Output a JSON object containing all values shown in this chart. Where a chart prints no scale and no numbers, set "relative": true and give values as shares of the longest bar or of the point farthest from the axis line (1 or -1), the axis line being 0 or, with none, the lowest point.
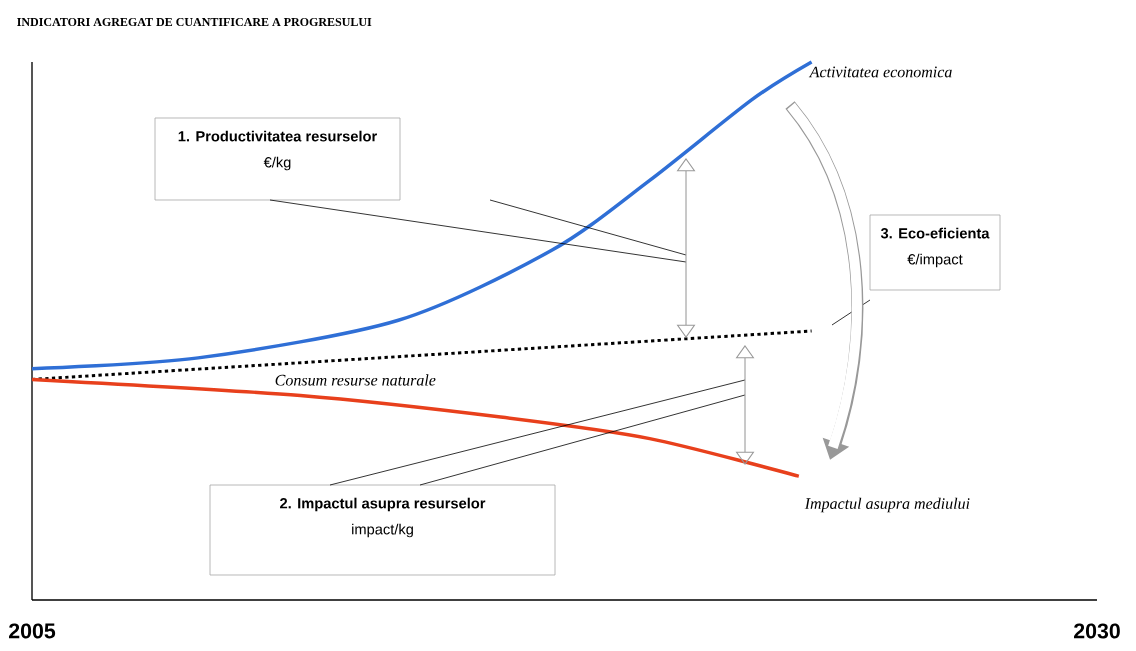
{
  "chart_data": {
    "type": "line",
    "relative": true,
    "title": "INDICATORI AGREGAT DE CUANTIFICARE A PROGRESULUI",
    "xlim": [
      2005,
      2030
    ],
    "xticks": [
      2005,
      2030
    ],
    "series": [
      {
        "name": "Activitatea economica",
        "color": "#2f6fd6",
        "line_style": "solid",
        "x": [
          2005,
          2008.9,
          2013.6,
          2017.2,
          2019.5,
          2021.9,
          2023.3
        ],
        "values": [
          0.43,
          0.45,
          0.52,
          0.65,
          0.78,
          0.93,
          1
        ]
      },
      {
        "name": "Consum resurse naturale",
        "color": "#000000",
        "line_style": "dotted",
        "x": [
          2005,
          2023.3
        ],
        "values": [
          0.41,
          0.5
        ]
      },
      {
        "name": "Impactul asupra mediului",
        "color": "#e8401c",
        "line_style": "solid",
        "x": [
          2005,
          2011.3,
          2016,
          2019.5,
          2023
        ],
        "values": [
          0.41,
          0.38,
          0.34,
          0.3,
          0.23
        ]
      }
    ],
    "annotations": [
      "1. Productivitatea resurselor",
      "€/kg",
      "2. Impactul asupra resurselor",
      "impact/kg",
      "3. Eco-eficienta",
      "€/impact"
    ]
  }
}
